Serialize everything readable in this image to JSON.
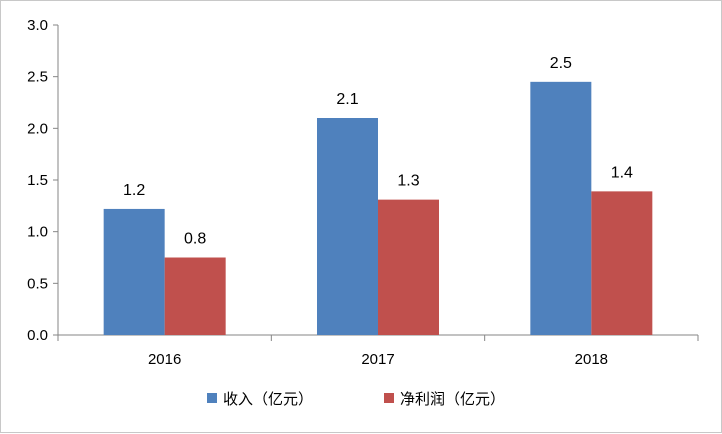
{
  "chart_data": {
    "type": "bar",
    "categories": [
      "2016",
      "2017",
      "2018"
    ],
    "series": [
      {
        "name": "收入（亿元）",
        "color": "#4f81bd",
        "values": [
          1.22,
          2.1,
          2.45
        ],
        "labels": [
          "1.2",
          "2.1",
          "2.5"
        ]
      },
      {
        "name": "净利润（亿元）",
        "color": "#c0504d",
        "values": [
          0.75,
          1.31,
          1.39
        ],
        "labels": [
          "0.8",
          "1.3",
          "1.4"
        ]
      }
    ],
    "yticks": [
      "0.0",
      "0.5",
      "1.0",
      "1.5",
      "2.0",
      "2.5",
      "3.0"
    ],
    "ylim": [
      0,
      3.0
    ],
    "grid": false,
    "legend": "bottom-center",
    "title": "",
    "xlabel": "",
    "ylabel": ""
  }
}
